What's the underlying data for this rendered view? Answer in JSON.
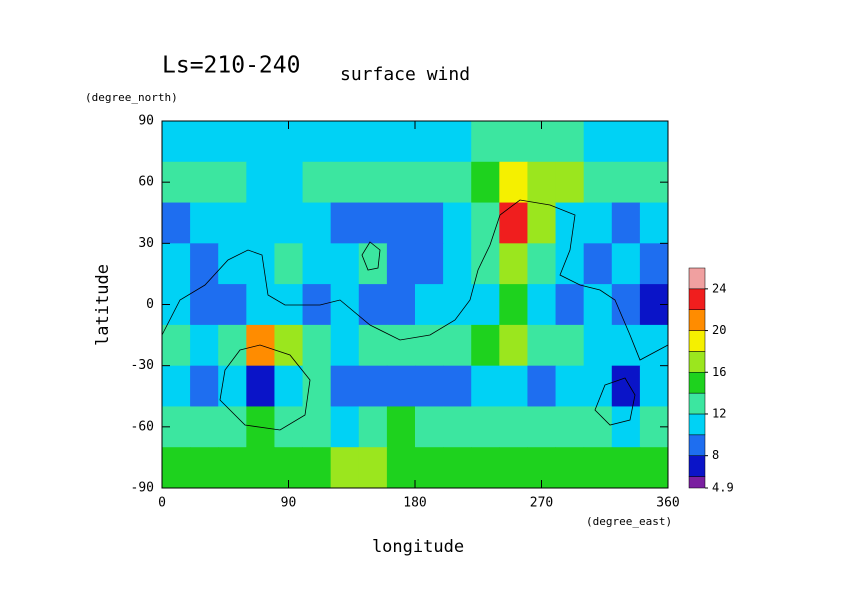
{
  "chart_data": {
    "type": "contour",
    "title": "Ls=210-240",
    "subtitle": "surface wind",
    "x_label": "longitude",
    "x_unit": "(degree_east)",
    "y_label": "latitude",
    "y_unit": "(degree_north)",
    "xlim": [
      0,
      360
    ],
    "xticks": [
      0,
      90,
      180,
      270,
      360
    ],
    "ylim": [
      -90,
      90
    ],
    "yticks": [
      -90,
      -60,
      -30,
      0,
      30,
      60,
      90
    ],
    "x": [
      10,
      30,
      50,
      70,
      90,
      110,
      130,
      150,
      170,
      190,
      210,
      230,
      250,
      270,
      290,
      310,
      330,
      350
    ],
    "y": [
      80,
      60,
      40,
      20,
      0,
      -20,
      -40,
      -60,
      -80
    ],
    "z": [
      [
        11,
        11,
        11,
        11,
        10,
        11,
        11,
        11,
        11,
        11,
        11,
        12,
        13,
        13,
        12,
        11,
        11,
        11
      ],
      [
        12,
        13,
        12,
        11,
        11,
        12,
        12,
        13,
        13,
        12,
        13,
        15,
        18,
        17,
        16,
        13,
        12,
        12
      ],
      [
        9,
        10,
        11,
        11,
        10,
        11,
        9,
        8,
        8,
        9,
        10,
        12,
        22,
        16,
        11,
        10,
        9,
        10
      ],
      [
        10,
        9,
        10,
        11,
        12,
        11,
        10,
        13,
        9,
        8,
        10,
        12,
        16,
        13,
        10,
        9,
        10,
        9
      ],
      [
        11,
        8,
        9,
        11,
        10,
        9,
        11,
        9,
        8,
        10,
        11,
        10,
        14,
        11,
        9,
        11,
        9,
        7
      ],
      [
        12,
        11,
        12,
        20,
        16,
        12,
        11,
        12,
        12,
        13,
        12,
        14,
        16,
        13,
        12,
        11,
        11,
        10
      ],
      [
        10,
        9,
        10,
        7,
        11,
        13,
        9,
        9,
        9,
        8,
        9,
        10,
        11,
        9,
        10,
        10,
        7,
        10
      ],
      [
        13,
        13,
        12,
        14,
        13,
        12,
        11,
        12,
        14,
        13,
        12,
        12,
        13,
        13,
        12,
        12,
        11,
        12
      ],
      [
        15,
        15,
        14,
        14,
        14,
        15,
        16,
        16,
        14,
        15,
        14,
        14,
        15,
        15,
        15,
        15,
        14,
        15
      ]
    ],
    "colorbar": {
      "levels": [
        4.9,
        6,
        8,
        10,
        12,
        14,
        16,
        18,
        20,
        22,
        24,
        26
      ],
      "colors": [
        "#7a1fa0",
        "#0a14c8",
        "#1e6ef0",
        "#00d2f5",
        "#3ce6a0",
        "#1ed21e",
        "#9be61e",
        "#f5f000",
        "#ff8c00",
        "#f01e1e",
        "#f0a0a0"
      ],
      "ticks": [
        4.9,
        8,
        12,
        16,
        20,
        24
      ]
    }
  }
}
